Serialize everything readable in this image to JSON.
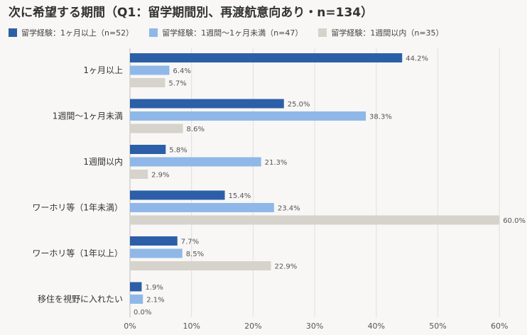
{
  "chart_data": {
    "type": "bar",
    "orientation": "horizontal",
    "title": "次に希望する期間（Q1：留学期間別、再渡航意向あり・n=134）",
    "categories": [
      "1ヶ月以上",
      "1週間〜1ヶ月未満",
      "1週間以内",
      "ワーホリ等（1年未満）",
      "ワーホリ等（1年以上）",
      "移住を視野に入れたい"
    ],
    "series": [
      {
        "name": "留学経験：1ヶ月以上（n=52）",
        "color": "#2c5fa8",
        "values": [
          44.2,
          25.0,
          5.8,
          15.4,
          7.7,
          1.9
        ],
        "labels": [
          "44.2%",
          "25.0%",
          "5.8%",
          "15.4%",
          "7.7%",
          "1.9%"
        ]
      },
      {
        "name": "留学経験：1週間〜1ヶ月未満（n=47）",
        "color": "#8fb8e8",
        "values": [
          6.4,
          38.3,
          21.3,
          23.4,
          8.5,
          2.1
        ],
        "labels": [
          "6.4%",
          "38.3%",
          "21.3%",
          "23.4%",
          "8.5%",
          "2.1%"
        ]
      },
      {
        "name": "留学経験：1週間以内（n=35）",
        "color": "#d6d3cc",
        "values": [
          5.7,
          8.6,
          2.9,
          60.0,
          22.9,
          0.0
        ],
        "labels": [
          "5.7%",
          "8.6%",
          "2.9%",
          "60.0%",
          "22.9%",
          "0.0%"
        ]
      }
    ],
    "xlim": [
      0,
      60
    ],
    "xticks": [
      "0%",
      "10%",
      "20%",
      "30%",
      "40%",
      "50%",
      "60%"
    ],
    "grid": true,
    "legend_position": "top-left"
  }
}
